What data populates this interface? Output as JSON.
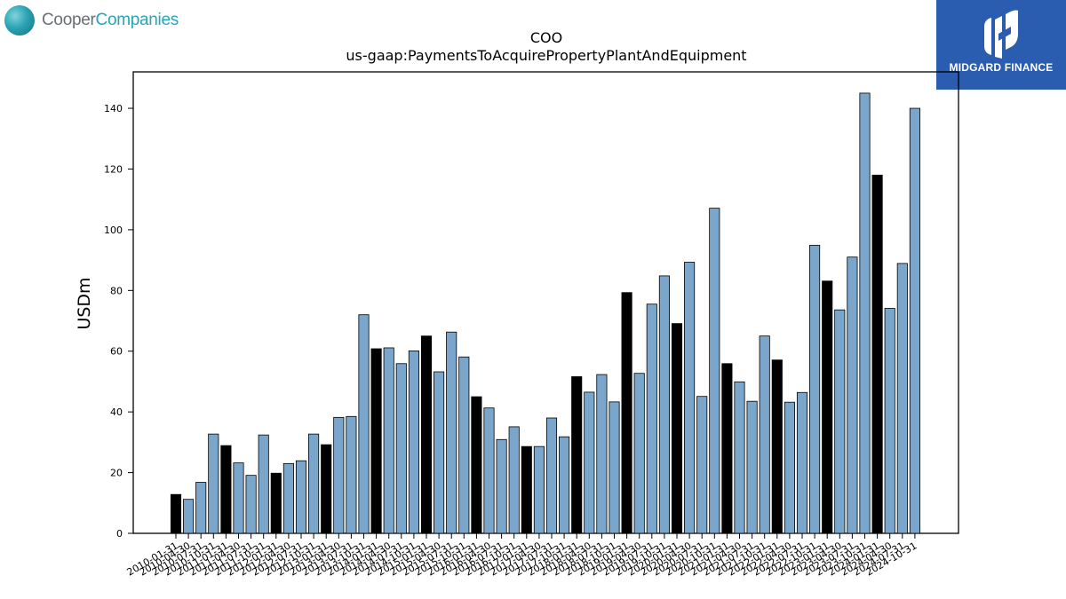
{
  "branding": {
    "left_logo": {
      "part1": "Cooper",
      "part2": "Companies",
      "icon": "globe-icon",
      "colors": {
        "gray": "#6b6f74",
        "teal": "#22a6b8"
      }
    },
    "right_logo": {
      "text": "MIDGARD FINANCE",
      "icon": "midgard-mark-icon",
      "background": "#2a5cb0"
    }
  },
  "chart_data": {
    "type": "bar",
    "title": "COO",
    "subtitle": "us-gaap:PaymentsToAcquirePropertyPlantAndEquipment",
    "ylabel": "USDm",
    "xlabel": "",
    "ylim": [
      0,
      152
    ],
    "yticks": [
      0,
      20,
      40,
      60,
      80,
      100,
      120,
      140
    ],
    "grid": false,
    "colors": {
      "fiscal_year_end": "#000000",
      "quarter": "#7aa6cc",
      "edge": "#000000"
    },
    "categories": [
      "2010-01-31",
      "2010-04-30",
      "2010-07-31",
      "2010-10-31",
      "2011-01-31",
      "2011-04-30",
      "2011-07-31",
      "2011-10-31",
      "2012-01-31",
      "2012-04-30",
      "2012-07-31",
      "2012-10-31",
      "2013-01-31",
      "2013-04-30",
      "2013-07-31",
      "2013-10-31",
      "2014-01-31",
      "2014-04-30",
      "2014-07-31",
      "2014-10-31",
      "2015-01-31",
      "2015-04-30",
      "2015-07-31",
      "2015-10-31",
      "2016-01-31",
      "2016-04-30",
      "2016-07-31",
      "2016-10-31",
      "2017-01-31",
      "2017-04-30",
      "2017-07-31",
      "2017-10-31",
      "2018-01-31",
      "2018-04-30",
      "2018-07-31",
      "2018-10-31",
      "2019-01-31",
      "2019-04-30",
      "2019-07-31",
      "2019-10-31",
      "2020-01-31",
      "2020-04-30",
      "2020-07-31",
      "2020-10-31",
      "2021-01-31",
      "2021-04-30",
      "2021-07-31",
      "2021-10-31",
      "2022-01-31",
      "2022-04-30",
      "2022-07-31",
      "2022-10-31",
      "2023-01-31",
      "2023-04-30",
      "2023-07-31",
      "2023-10-31",
      "2024-01-31",
      "2024-04-30",
      "2024-07-31",
      "2024-10-31"
    ],
    "values": [
      12.8,
      11.2,
      16.8,
      32.7,
      28.9,
      23.2,
      19.1,
      32.4,
      19.8,
      23.0,
      23.9,
      32.7,
      29.2,
      38.2,
      38.5,
      72.0,
      60.8,
      61.1,
      55.9,
      60.1,
      65.0,
      53.2,
      66.3,
      58.1,
      45.0,
      41.3,
      30.9,
      35.1,
      28.6,
      28.6,
      38.0,
      31.8,
      51.6,
      46.5,
      52.3,
      43.3,
      79.3,
      52.7,
      75.5,
      84.8,
      69.1,
      89.3,
      45.1,
      107.1,
      55.9,
      49.9,
      43.5,
      65.0,
      57.1,
      43.2,
      46.4,
      94.9,
      83.1,
      73.6,
      91.0,
      145.0,
      118.0,
      74.1,
      88.9,
      140.0
    ],
    "highlight_index": [
      0,
      4,
      8,
      12,
      16,
      20,
      24,
      28,
      32,
      36,
      40,
      44,
      48,
      52,
      56
    ]
  }
}
